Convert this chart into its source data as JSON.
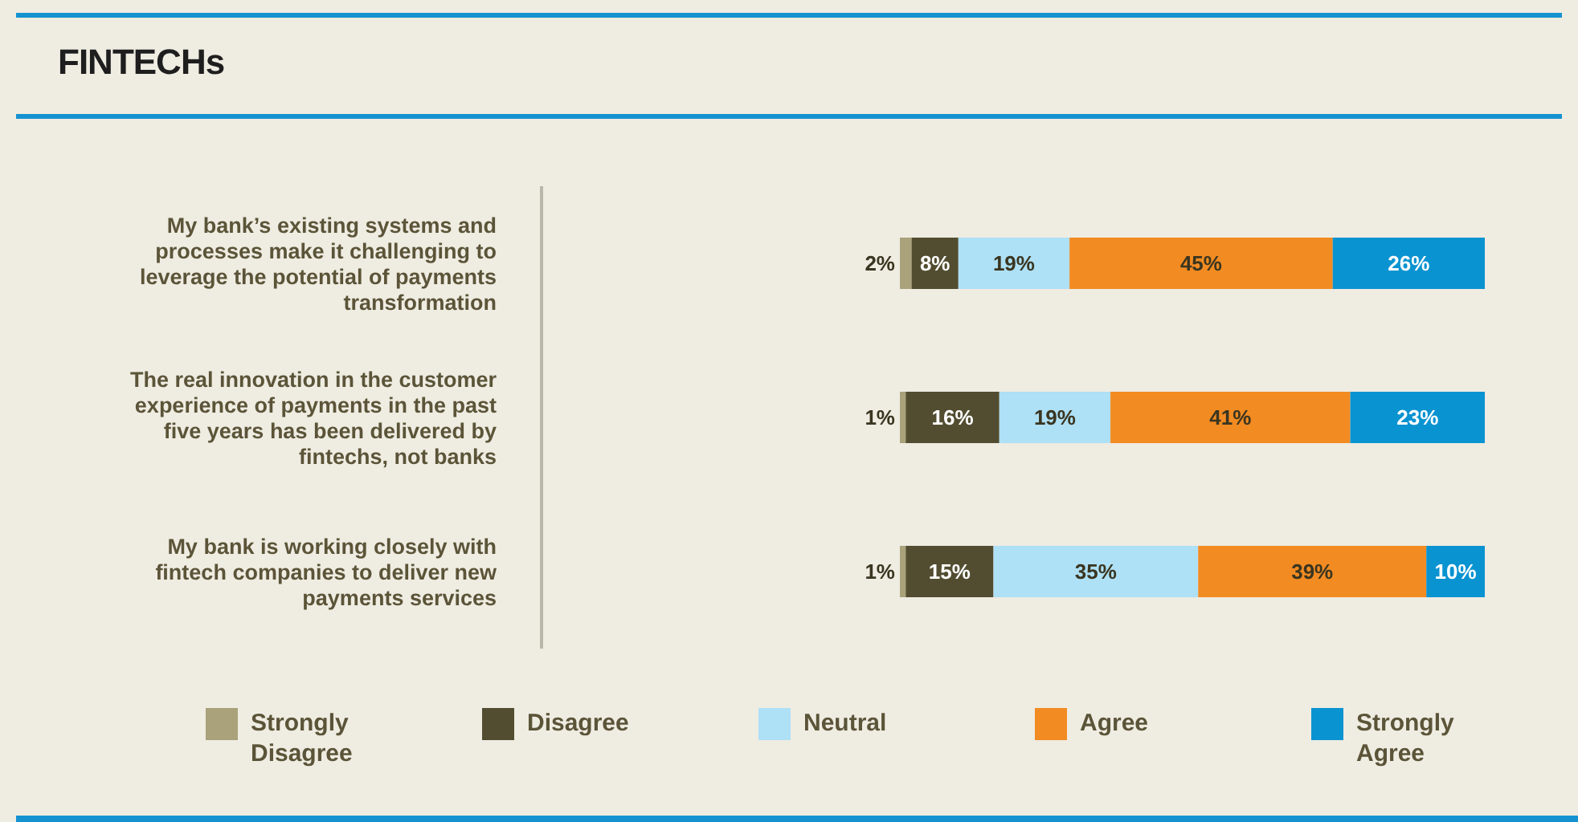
{
  "chart_data": {
    "type": "bar",
    "title": "FINTECHs",
    "orientation": "horizontal",
    "stacked": true,
    "legend": "bottom",
    "categories": [
      "My bank’s existing systems and processes make it challenging to leverage the potential of payments transformation",
      "The real innovation in the customer experience of payments in the past five years has been delivered by fintechs, not banks",
      "My bank is working closely with fintech companies to deliver new payments services"
    ],
    "series": [
      {
        "name": "Strongly Disagree",
        "color": "#a9a27a",
        "values": [
          2,
          1,
          1
        ],
        "value_labels": [
          "2%",
          "1%",
          "1%"
        ]
      },
      {
        "name": "Disagree",
        "color": "#524d30",
        "values": [
          8,
          16,
          15
        ],
        "value_labels": [
          "8%",
          "16%",
          "15%"
        ]
      },
      {
        "name": "Neutral",
        "color": "#aee0f6",
        "values": [
          19,
          19,
          35
        ],
        "value_labels": [
          "19%",
          "19%",
          "35%"
        ]
      },
      {
        "name": "Agree",
        "color": "#f28b22",
        "values": [
          45,
          41,
          39
        ],
        "value_labels": [
          "45%",
          "41%",
          "39%"
        ]
      },
      {
        "name": "Strongly Agree",
        "color": "#0a93d1",
        "values": [
          26,
          23,
          10
        ],
        "value_labels": [
          "26%",
          "23%",
          "10%"
        ]
      }
    ]
  }
}
